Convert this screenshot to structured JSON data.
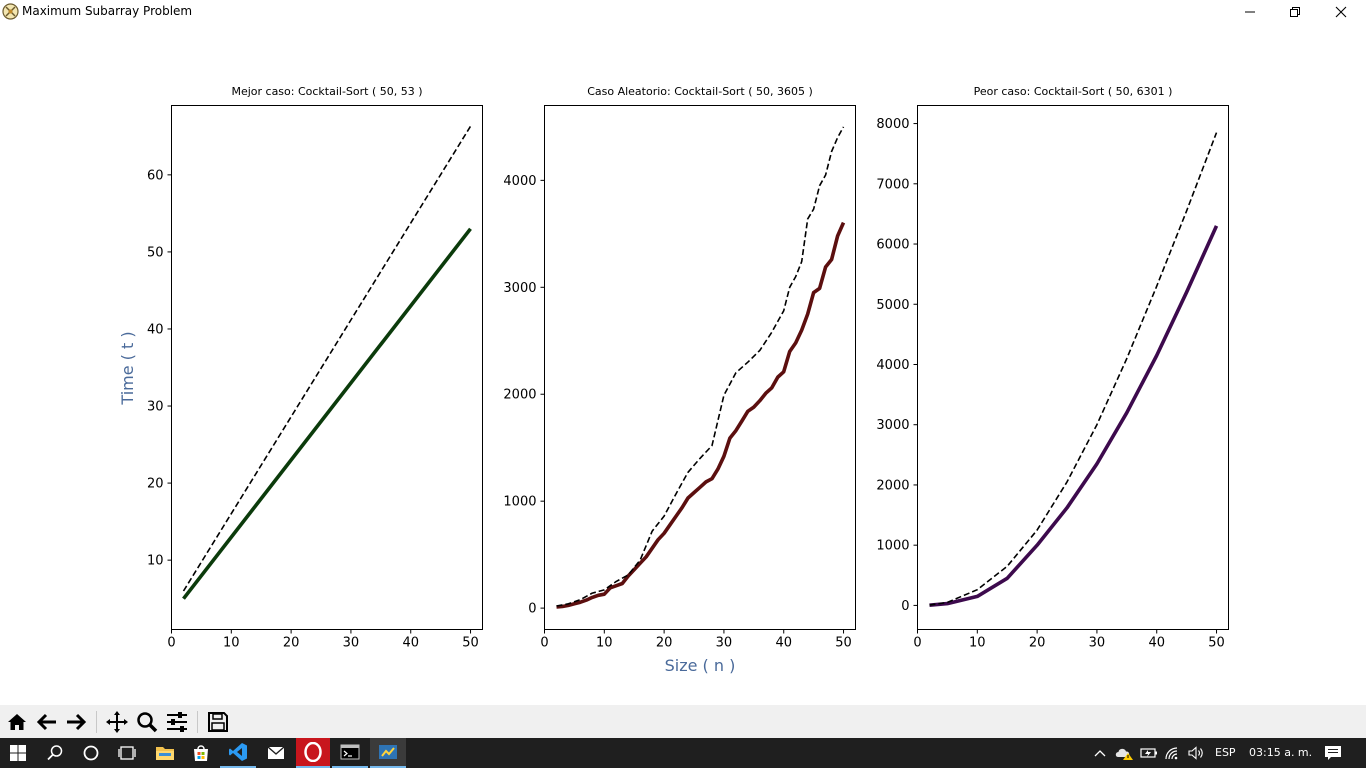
{
  "window": {
    "title": "Maximum Subarray Problem"
  },
  "figure": {
    "shared_ylabel": "Time ( t )",
    "shared_xlabel": "Size ( n )",
    "label_color": "#4a6a9a"
  },
  "chart_data": [
    {
      "type": "line",
      "title": "Mejor caso: Cocktail-Sort ( 50, 53 )",
      "xlim": [
        0,
        52
      ],
      "ylim": [
        1,
        69
      ],
      "x_ticks": [
        "0",
        "10",
        "20",
        "30",
        "40",
        "50"
      ],
      "y_ticks": [
        "10",
        "20",
        "30",
        "40",
        "50",
        "60"
      ],
      "series": [
        {
          "style": "solid",
          "color": "#0b3b0b",
          "x": [
            2,
            50
          ],
          "y": [
            5,
            53
          ]
        },
        {
          "style": "dashed",
          "color": "#000000",
          "x": [
            2,
            50
          ],
          "y": [
            6,
            66.3
          ]
        }
      ]
    },
    {
      "type": "line",
      "title": "Caso Aleatorio: Cocktail-Sort ( 50, 3605 )",
      "xlim": [
        0,
        52
      ],
      "ylim": [
        -200,
        4700
      ],
      "x_ticks": [
        "0",
        "10",
        "20",
        "30",
        "40",
        "50"
      ],
      "y_ticks": [
        "0",
        "1000",
        "2000",
        "3000",
        "4000"
      ],
      "series": [
        {
          "style": "solid",
          "color": "#5c0f0f",
          "x": [
            2,
            3,
            4,
            5,
            6,
            7,
            8,
            9,
            10,
            11,
            12,
            13,
            14,
            15,
            16,
            17,
            18,
            19,
            20,
            21,
            22,
            23,
            24,
            25,
            26,
            27,
            28,
            29,
            30,
            31,
            32,
            33,
            34,
            35,
            36,
            37,
            38,
            39,
            40,
            41,
            42,
            43,
            44,
            45,
            46,
            47,
            48,
            49,
            50
          ],
          "y": [
            10,
            15,
            25,
            40,
            55,
            75,
            100,
            120,
            130,
            190,
            210,
            230,
            300,
            360,
            420,
            480,
            560,
            640,
            700,
            780,
            860,
            940,
            1030,
            1080,
            1130,
            1180,
            1210,
            1300,
            1420,
            1590,
            1660,
            1750,
            1840,
            1880,
            1940,
            2010,
            2060,
            2160,
            2210,
            2400,
            2480,
            2600,
            2750,
            2950,
            2990,
            3190,
            3260,
            3480,
            3605
          ]
        },
        {
          "style": "dashed",
          "color": "#000000",
          "x": [
            2,
            4,
            6,
            8,
            10,
            12,
            14,
            16,
            18,
            20,
            22,
            24,
            26,
            28,
            30,
            32,
            34,
            36,
            38,
            40,
            41,
            42,
            43,
            44,
            45,
            46,
            47,
            48,
            49,
            50
          ],
          "y": [
            20,
            40,
            80,
            140,
            170,
            250,
            310,
            450,
            720,
            860,
            1070,
            1270,
            1400,
            1520,
            1990,
            2200,
            2300,
            2410,
            2580,
            2780,
            3000,
            3100,
            3240,
            3640,
            3730,
            3950,
            4050,
            4270,
            4400,
            4500
          ]
        }
      ]
    },
    {
      "type": "line",
      "title": "Peor caso: Cocktail-Sort ( 50, 6301 )",
      "xlim": [
        0,
        52
      ],
      "ylim": [
        -400,
        8300
      ],
      "x_ticks": [
        "0",
        "10",
        "20",
        "30",
        "40",
        "50"
      ],
      "y_ticks": [
        "0",
        "1000",
        "2000",
        "3000",
        "4000",
        "5000",
        "6000",
        "7000",
        "8000"
      ],
      "series": [
        {
          "style": "solid",
          "color": "#3d0a4d",
          "x": [
            2,
            5,
            10,
            15,
            20,
            25,
            30,
            35,
            40,
            45,
            50
          ],
          "y": [
            3,
            30,
            150,
            450,
            1000,
            1620,
            2350,
            3200,
            4150,
            5200,
            6301
          ]
        },
        {
          "style": "dashed",
          "color": "#000000",
          "x": [
            2,
            5,
            10,
            15,
            20,
            25,
            30,
            35,
            40,
            45,
            50
          ],
          "y": [
            5,
            50,
            260,
            650,
            1250,
            2050,
            3000,
            4100,
            5300,
            6550,
            7850
          ]
        }
      ]
    }
  ],
  "toolbar": {
    "buttons": [
      "home-icon",
      "back-icon",
      "forward-icon",
      "pan-icon",
      "zoom-icon",
      "configure-subplots-icon",
      "save-icon"
    ]
  },
  "taskbar": {
    "language": "ESP",
    "time": "03:15 a. m."
  }
}
